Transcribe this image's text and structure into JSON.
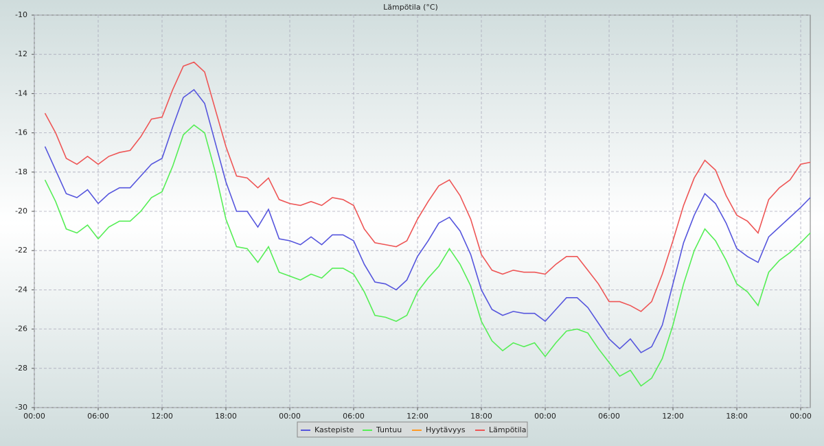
{
  "chart_data": {
    "type": "line",
    "title": "Lämpötila (°C)",
    "x": [
      1,
      2,
      3,
      4,
      5,
      6,
      7,
      8,
      9,
      10,
      11,
      12,
      13,
      14,
      15,
      16,
      17,
      18,
      19,
      20,
      21,
      22,
      23,
      24,
      25,
      26,
      27,
      28,
      29,
      30,
      31,
      32,
      33,
      34,
      35,
      36,
      37,
      38,
      39,
      40,
      41,
      42,
      43,
      44,
      45,
      46,
      47,
      48,
      49,
      50,
      51,
      52,
      53,
      54,
      55,
      56,
      57,
      58,
      59,
      60,
      61,
      62,
      63,
      64,
      65,
      66,
      67,
      68,
      69,
      70,
      71,
      72,
      72.9
    ],
    "series": [
      {
        "name": "Kastepiste",
        "color": "#5555dd",
        "values": [
          -16.7,
          -17.9,
          -19.1,
          -19.3,
          -18.9,
          -19.6,
          -19.1,
          -18.8,
          -18.8,
          -18.2,
          -17.6,
          -17.3,
          -15.7,
          -14.2,
          -13.8,
          -14.5,
          -16.5,
          -18.5,
          -20.0,
          -20.0,
          -20.8,
          -19.9,
          -21.4,
          -21.5,
          -21.7,
          -21.3,
          -21.7,
          -21.2,
          -21.2,
          -21.5,
          -22.7,
          -23.6,
          -23.7,
          -24.0,
          -23.5,
          -22.3,
          -21.5,
          -20.6,
          -20.3,
          -21.0,
          -22.2,
          -24.0,
          -25.0,
          -25.3,
          -25.1,
          -25.2,
          -25.2,
          -25.6,
          -25.0,
          -24.4,
          -24.4,
          -24.9,
          -25.7,
          -26.5,
          -27.0,
          -26.5,
          -27.2,
          -26.9,
          -25.8,
          -23.7,
          -21.6,
          -20.2,
          -19.1,
          -19.6,
          -20.6,
          -21.9,
          -22.3,
          -22.6,
          -21.3,
          -20.8,
          -20.3,
          -19.8,
          -19.3
        ]
      },
      {
        "name": "Tuntuu",
        "color": "#55ee55",
        "values": [
          -18.4,
          -19.5,
          -20.9,
          -21.1,
          -20.7,
          -21.4,
          -20.8,
          -20.5,
          -20.5,
          -20.0,
          -19.3,
          -19.0,
          -17.7,
          -16.1,
          -15.6,
          -16.0,
          -18.0,
          -20.4,
          -21.8,
          -21.9,
          -22.6,
          -21.8,
          -23.1,
          -23.3,
          -23.5,
          -23.2,
          -23.4,
          -22.9,
          -22.9,
          -23.2,
          -24.1,
          -25.3,
          -25.4,
          -25.6,
          -25.3,
          -24.1,
          -23.4,
          -22.8,
          -21.9,
          -22.7,
          -23.8,
          -25.6,
          -26.6,
          -27.1,
          -26.7,
          -26.9,
          -26.7,
          -27.4,
          -26.7,
          -26.1,
          -26.0,
          -26.2,
          -27.0,
          -27.7,
          -28.4,
          -28.1,
          -28.9,
          -28.5,
          -27.5,
          -25.8,
          -23.7,
          -22.0,
          -20.9,
          -21.5,
          -22.5,
          -23.7,
          -24.1,
          -24.8,
          -23.1,
          -22.5,
          -22.1,
          -21.6,
          -21.1
        ]
      },
      {
        "name": "Hyytävyys",
        "color": "#ff9922",
        "values": [
          null,
          null,
          null,
          null,
          null,
          null,
          null,
          null,
          null,
          null,
          null,
          null,
          null,
          null,
          null,
          null,
          null,
          null,
          null,
          null,
          null,
          null,
          null,
          null,
          null,
          null,
          null,
          null,
          null,
          null,
          null,
          null,
          null,
          null,
          null,
          null,
          null,
          null,
          null,
          null,
          null,
          null,
          null,
          null,
          null,
          null,
          null,
          null,
          null,
          null,
          null,
          null,
          null,
          null,
          null,
          null,
          null,
          null,
          null,
          null,
          null,
          null,
          null,
          null,
          null,
          null,
          null,
          null,
          null,
          null,
          null,
          null,
          null
        ]
      },
      {
        "name": "Lämpötila",
        "color": "#ee5555",
        "values": [
          -15.0,
          -16.0,
          -17.3,
          -17.6,
          -17.2,
          -17.6,
          -17.2,
          -17.0,
          -16.9,
          -16.2,
          -15.3,
          -15.2,
          -13.8,
          -12.6,
          -12.4,
          -12.9,
          -14.8,
          -16.7,
          -18.2,
          -18.3,
          -18.8,
          -18.3,
          -19.4,
          -19.6,
          -19.7,
          -19.5,
          -19.7,
          -19.3,
          -19.4,
          -19.7,
          -20.9,
          -21.6,
          -21.7,
          -21.8,
          -21.5,
          -20.4,
          -19.5,
          -18.7,
          -18.4,
          -19.2,
          -20.4,
          -22.2,
          -23.0,
          -23.2,
          -23.0,
          -23.1,
          -23.1,
          -23.2,
          -22.7,
          -22.3,
          -22.3,
          -23.0,
          -23.7,
          -24.6,
          -24.6,
          -24.8,
          -25.1,
          -24.6,
          -23.2,
          -21.5,
          -19.7,
          -18.3,
          -17.4,
          -17.9,
          -19.2,
          -20.2,
          -20.5,
          -21.1,
          -19.4,
          -18.8,
          -18.4,
          -17.6,
          -17.5
        ]
      }
    ],
    "xlim": [
      0,
      72.9
    ],
    "xticks": [
      {
        "value": 0,
        "label": "00:00"
      },
      {
        "value": 6,
        "label": "06:00"
      },
      {
        "value": 12,
        "label": "12:00"
      },
      {
        "value": 18,
        "label": "18:00"
      },
      {
        "value": 24,
        "label": "00:00"
      },
      {
        "value": 30,
        "label": "06:00"
      },
      {
        "value": 36,
        "label": "12:00"
      },
      {
        "value": 42,
        "label": "18:00"
      },
      {
        "value": 48,
        "label": "00:00"
      },
      {
        "value": 54,
        "label": "06:00"
      },
      {
        "value": 60,
        "label": "12:00"
      },
      {
        "value": 66,
        "label": "18:00"
      },
      {
        "value": 72,
        "label": "00:00"
      }
    ],
    "ylim": [
      -30,
      -10
    ],
    "yticks": [
      -30,
      -28,
      -26,
      -24,
      -22,
      -20,
      -18,
      -16,
      -14,
      -12,
      -10
    ],
    "grid": true
  }
}
